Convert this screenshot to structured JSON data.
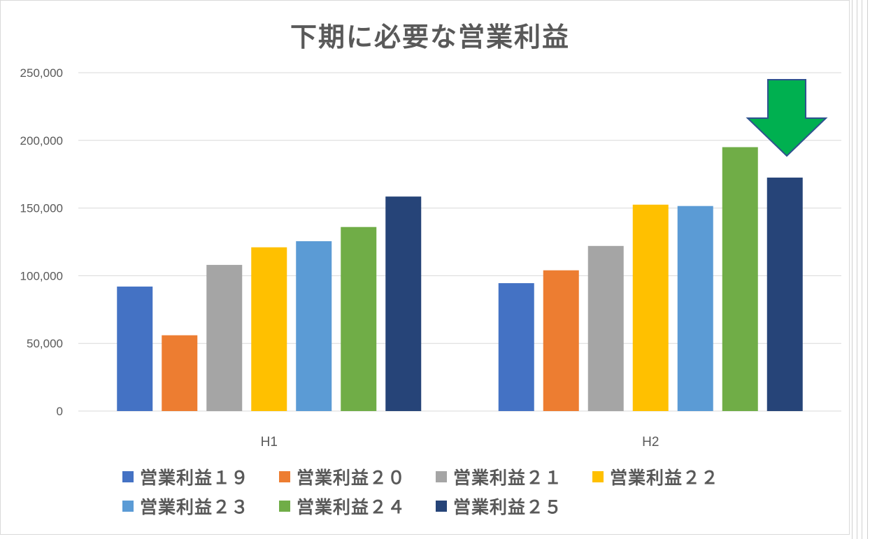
{
  "chart_data": {
    "type": "bar",
    "title": "下期に必要な営業利益",
    "categories": [
      "H1",
      "H2"
    ],
    "ylim": [
      0,
      250000
    ],
    "yticks": [
      0,
      50000,
      100000,
      150000,
      200000,
      250000
    ],
    "ytick_labels": [
      "0",
      "50,000",
      "100,000",
      "150,000",
      "200,000",
      "250,000"
    ],
    "grid": true,
    "legend_position": "bottom",
    "series": [
      {
        "name": "営業利益１９",
        "color": "#4472C4",
        "values": [
          92000,
          94500
        ]
      },
      {
        "name": "営業利益２０",
        "color": "#ED7D31",
        "values": [
          56000,
          104000
        ]
      },
      {
        "name": "営業利益２１",
        "color": "#A5A5A5",
        "values": [
          108000,
          122000
        ]
      },
      {
        "name": "営業利益２２",
        "color": "#FFC000",
        "values": [
          121000,
          152500
        ]
      },
      {
        "name": "営業利益２３",
        "color": "#5B9BD5",
        "values": [
          125500,
          151500
        ]
      },
      {
        "name": "営業利益２４",
        "color": "#70AD47",
        "values": [
          136000,
          195000
        ]
      },
      {
        "name": "営業利益２５",
        "color": "#264478",
        "values": [
          158500,
          172500
        ]
      }
    ],
    "annotation": {
      "type": "down-arrow",
      "color": "#00B050",
      "outline": "#2F528F",
      "target": "H2 営業利益２５"
    }
  }
}
